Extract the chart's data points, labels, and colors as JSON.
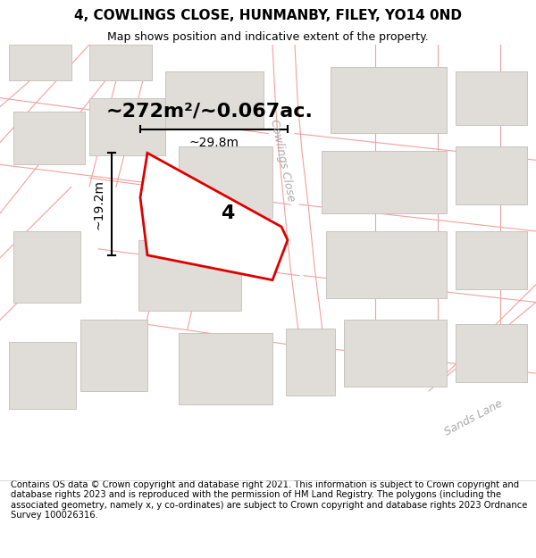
{
  "title": "4, COWLINGS CLOSE, HUNMANBY, FILEY, YO14 0ND",
  "subtitle": "Map shows position and indicative extent of the property.",
  "footer": "Contains OS data © Crown copyright and database right 2021. This information is subject to Crown copyright and database rights 2023 and is reproduced with the permission of HM Land Registry. The polygons (including the associated geometry, namely x, y co-ordinates) are subject to Crown copyright and database rights 2023 Ordnance Survey 100026316.",
  "map_bg": "#ffffff",
  "road_line_color": "#f2a0a0",
  "building_color": "#e0dcd8",
  "building_border_color": "#c8c4c0",
  "highlight_color": "#dd0000",
  "highlight_fill": "#ffffff",
  "dim_label": "~272m²/~0.067ac.",
  "width_label": "~29.8m",
  "height_label": "~19.2m",
  "street_label_cowlings": "Cowlings Close",
  "street_label_sands": "Sands Lane",
  "plot_number": "4",
  "title_fontsize": 11,
  "subtitle_fontsize": 9,
  "footer_fontsize": 7.2,
  "dim_fontsize": 16,
  "measure_fontsize": 10,
  "street_fontsize": 9,
  "plot_num_fontsize": 16
}
